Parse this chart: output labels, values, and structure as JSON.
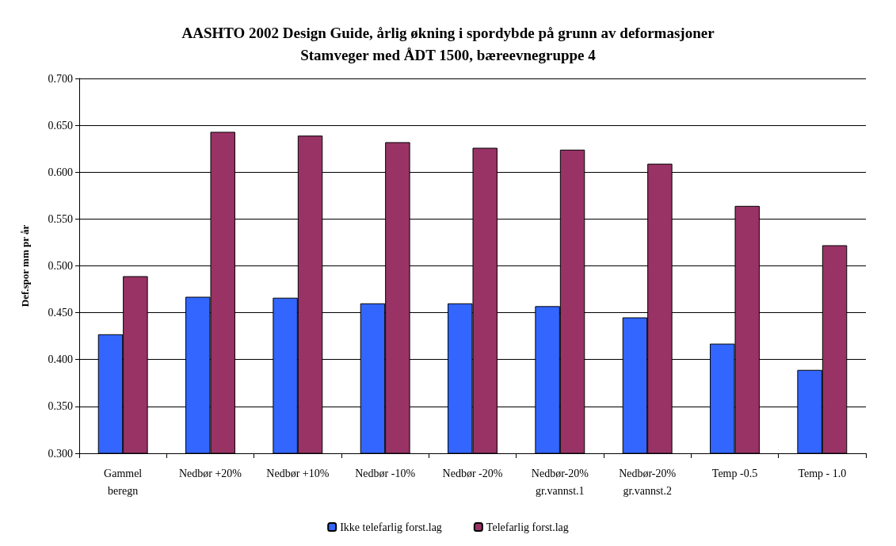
{
  "chart_data": {
    "type": "bar",
    "title": "AASHTO 2002 Design Guide, årlig økning i spordybde på grunn av deformasjoner\nStamveger med ÅDT 1500, bæreevnegruppe 4",
    "ylabel": "Def.spor mm pr år",
    "categories": [
      "Gammel\nberegn",
      "Nedbør +20%",
      "Nedbør +10%",
      "Nedbør -10%",
      "Nedbør -20%",
      "Nedbør-20%\ngr.vannst.1",
      "Nedbør-20%\ngr.vannst.2",
      "Temp -0.5",
      "Temp - 1.0"
    ],
    "series": [
      {
        "name": "Ikke telefarlig forst.lag",
        "color": "#3366ff",
        "values": [
          0.427,
          0.467,
          0.466,
          0.46,
          0.46,
          0.457,
          0.445,
          0.417,
          0.389
        ]
      },
      {
        "name": "Telefarlig forst.lag",
        "color": "#993366",
        "values": [
          0.489,
          0.643,
          0.639,
          0.632,
          0.626,
          0.624,
          0.609,
          0.564,
          0.522
        ]
      }
    ],
    "ylim": [
      0.3,
      0.7
    ],
    "yticks": [
      {
        "value": 0.3,
        "label": "0.300"
      },
      {
        "value": 0.35,
        "label": "0.350"
      },
      {
        "value": 0.4,
        "label": "0.400"
      },
      {
        "value": 0.45,
        "label": "0.450"
      },
      {
        "value": 0.5,
        "label": "0.500"
      },
      {
        "value": 0.55,
        "label": "0.550"
      },
      {
        "value": 0.6,
        "label": "0.600"
      },
      {
        "value": 0.65,
        "label": "0.650"
      },
      {
        "value": 0.7,
        "label": "0.700"
      }
    ],
    "grid": "y",
    "legend": "bottom"
  }
}
